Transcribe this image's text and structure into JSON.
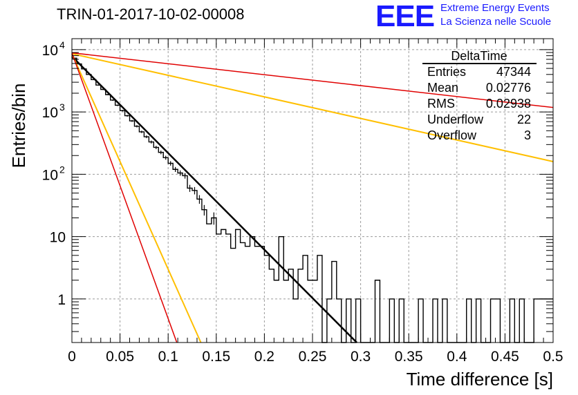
{
  "header": {
    "title": "TRIN-01-2017-10-02-00008",
    "logo_text": "EEE",
    "logo_line1": "Extreme Energy Events",
    "logo_line2": "La Scienza nelle Scuole",
    "logo_color": "#1a1aff"
  },
  "stats_box": {
    "title": "DeltaTime",
    "rows": [
      {
        "label": "Entries",
        "value": "47344"
      },
      {
        "label": "Mean",
        "value": "0.02776"
      },
      {
        "label": "RMS",
        "value": "0.02938"
      },
      {
        "label": "Underflow",
        "value": "22"
      },
      {
        "label": "Overflow",
        "value": "3"
      }
    ]
  },
  "chart_data": {
    "type": "histogram",
    "xlabel": "Time difference [s]",
    "ylabel": "Entries/bin",
    "xlim": [
      0,
      0.5
    ],
    "ylim": [
      0.2,
      15000
    ],
    "yscale": "log",
    "grid": true,
    "x_ticks": [
      {
        "value": 0,
        "label": "0"
      },
      {
        "value": 0.05,
        "label": "0.05"
      },
      {
        "value": 0.1,
        "label": "0.1"
      },
      {
        "value": 0.15,
        "label": "0.15"
      },
      {
        "value": 0.2,
        "label": "0.2"
      },
      {
        "value": 0.25,
        "label": "0.25"
      },
      {
        "value": 0.3,
        "label": "0.3"
      },
      {
        "value": 0.35,
        "label": "0.35"
      },
      {
        "value": 0.4,
        "label": "0.4"
      },
      {
        "value": 0.45,
        "label": "0.45"
      },
      {
        "value": 0.5,
        "label": "0.5"
      }
    ],
    "y_ticks": [
      {
        "value": 1,
        "base": "1",
        "exp": ""
      },
      {
        "value": 10,
        "base": "10",
        "exp": ""
      },
      {
        "value": 100,
        "base": "10",
        "exp": "2"
      },
      {
        "value": 1000,
        "base": "10",
        "exp": "3"
      },
      {
        "value": 10000,
        "base": "10",
        "exp": "4"
      }
    ],
    "histogram": {
      "color": "#000000",
      "bin_width": 0.005,
      "x_start": 0,
      "values": [
        7300,
        5900,
        4900,
        4000,
        3300,
        2700,
        2300,
        1900,
        1550,
        1280,
        1050,
        870,
        720,
        590,
        480,
        400,
        330,
        270,
        225,
        185,
        150,
        120,
        105,
        95,
        60,
        55,
        40,
        27,
        16,
        20,
        11,
        13,
        11,
        6.5,
        13,
        8,
        7,
        10,
        7,
        7,
        5,
        3,
        2,
        10,
        2,
        3,
        1,
        3,
        5,
        2,
        2,
        5,
        0,
        1,
        4,
        1,
        0,
        1,
        0,
        1,
        0,
        0,
        0,
        2,
        0,
        0,
        1,
        0,
        1,
        0,
        0,
        0,
        1,
        0,
        0,
        1,
        0,
        1,
        0,
        0,
        0,
        0,
        1,
        0,
        1,
        0,
        0,
        1,
        1,
        0,
        0,
        1,
        0,
        1,
        0,
        0,
        1,
        1,
        1,
        1
      ]
    },
    "fits": [
      {
        "color": "#000000",
        "width": 2.5,
        "x0": 0,
        "y0": 7800,
        "x1": 0.296,
        "y1": 0.2
      },
      {
        "color": "#ffbf00",
        "width": 2,
        "x0": 0,
        "y0": 8600,
        "x1": 0.5,
        "y1": 160
      },
      {
        "color": "#ffbf00",
        "width": 2,
        "x0": 0,
        "y0": 8600,
        "x1": 0.134,
        "y1": 0.2
      },
      {
        "color": "#e00000",
        "width": 1.5,
        "x0": 0,
        "y0": 8900,
        "x1": 0.5,
        "y1": 1180
      },
      {
        "color": "#e00000",
        "width": 1.5,
        "x0": 0,
        "y0": 8900,
        "x1": 0.109,
        "y1": 0.2
      }
    ]
  }
}
